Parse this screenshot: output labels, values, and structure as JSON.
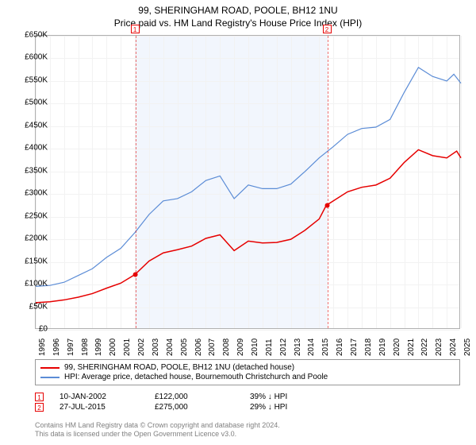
{
  "title": {
    "line1": "99, SHERINGHAM ROAD, POOLE, BH12 1NU",
    "line2": "Price paid vs. HM Land Registry's House Price Index (HPI)",
    "fontsize": 12,
    "color": "#000000"
  },
  "chart": {
    "type": "line",
    "background_color": "#ffffff",
    "grid_color": "#f2f2f2",
    "border_color": "#b0b0b0",
    "shade_color": "#eaf0fc",
    "x": {
      "min": 1995,
      "max": 2025,
      "tick_step": 1,
      "labels": [
        "1995",
        "1996",
        "1997",
        "1998",
        "1999",
        "2000",
        "2001",
        "2002",
        "2003",
        "2004",
        "2005",
        "2006",
        "2007",
        "2008",
        "2009",
        "2010",
        "2011",
        "2012",
        "2013",
        "2014",
        "2015",
        "2016",
        "2017",
        "2018",
        "2019",
        "2020",
        "2021",
        "2022",
        "2023",
        "2024",
        "2025"
      ],
      "label_fontsize": 10,
      "label_rotation": -90
    },
    "y": {
      "min": 0,
      "max": 650,
      "tick_step": 50,
      "labels": [
        "£0",
        "£50K",
        "£100K",
        "£150K",
        "£200K",
        "£250K",
        "£300K",
        "£350K",
        "£400K",
        "£450K",
        "£500K",
        "£550K",
        "£600K",
        "£650K"
      ],
      "label_fontsize": 10
    },
    "series": [
      {
        "name": "99, SHERINGHAM ROAD, POOLE, BH12 1NU (detached house)",
        "color": "#e60000",
        "line_width": 1.5,
        "points": [
          [
            1995,
            60
          ],
          [
            1996,
            62
          ],
          [
            1997,
            66
          ],
          [
            1998,
            72
          ],
          [
            1999,
            80
          ],
          [
            2000,
            92
          ],
          [
            2001,
            103
          ],
          [
            2002,
            122
          ],
          [
            2003,
            152
          ],
          [
            2004,
            170
          ],
          [
            2005,
            177
          ],
          [
            2006,
            185
          ],
          [
            2007,
            202
          ],
          [
            2008,
            210
          ],
          [
            2009,
            175
          ],
          [
            2010,
            196
          ],
          [
            2011,
            192
          ],
          [
            2012,
            193
          ],
          [
            2013,
            200
          ],
          [
            2014,
            220
          ],
          [
            2015,
            245
          ],
          [
            2015.5,
            275
          ],
          [
            2016,
            285
          ],
          [
            2017,
            305
          ],
          [
            2018,
            315
          ],
          [
            2019,
            320
          ],
          [
            2020,
            335
          ],
          [
            2021,
            370
          ],
          [
            2022,
            398
          ],
          [
            2023,
            385
          ],
          [
            2024,
            380
          ],
          [
            2024.7,
            395
          ],
          [
            2025,
            380
          ]
        ]
      },
      {
        "name": "HPI: Average price, detached house, Bournemouth Christchurch and Poole",
        "color": "#5b8cd6",
        "line_width": 1.2,
        "points": [
          [
            1995,
            96
          ],
          [
            1996,
            98
          ],
          [
            1997,
            105
          ],
          [
            1998,
            120
          ],
          [
            1999,
            135
          ],
          [
            2000,
            160
          ],
          [
            2001,
            180
          ],
          [
            2002,
            215
          ],
          [
            2003,
            255
          ],
          [
            2004,
            285
          ],
          [
            2005,
            290
          ],
          [
            2006,
            305
          ],
          [
            2007,
            330
          ],
          [
            2008,
            340
          ],
          [
            2009,
            290
          ],
          [
            2010,
            320
          ],
          [
            2011,
            312
          ],
          [
            2012,
            312
          ],
          [
            2013,
            322
          ],
          [
            2014,
            350
          ],
          [
            2015,
            380
          ],
          [
            2016,
            405
          ],
          [
            2017,
            432
          ],
          [
            2018,
            445
          ],
          [
            2019,
            448
          ],
          [
            2020,
            465
          ],
          [
            2021,
            525
          ],
          [
            2022,
            580
          ],
          [
            2023,
            560
          ],
          [
            2024,
            550
          ],
          [
            2024.5,
            565
          ],
          [
            2025,
            545
          ]
        ]
      }
    ],
    "sale_markers": [
      {
        "n": "1",
        "x": 2002.03,
        "y": 122
      },
      {
        "n": "2",
        "x": 2015.57,
        "y": 275
      }
    ],
    "sale_dots_color": "#e60000",
    "sale_dot_radius": 3
  },
  "legend": {
    "fontsize": 10,
    "items": [
      {
        "color": "#e60000",
        "label": "99, SHERINGHAM ROAD, POOLE, BH12 1NU (detached house)"
      },
      {
        "color": "#5b8cd6",
        "label": "HPI: Average price, detached house, Bournemouth Christchurch and Poole"
      }
    ]
  },
  "sales": [
    {
      "n": "1",
      "date": "10-JAN-2002",
      "price": "£122,000",
      "delta": "39% ↓ HPI"
    },
    {
      "n": "2",
      "date": "27-JUL-2015",
      "price": "£275,000",
      "delta": "29% ↓ HPI"
    }
  ],
  "footer": {
    "line1": "Contains HM Land Registry data © Crown copyright and database right 2024.",
    "line2": "This data is licensed under the Open Government Licence v3.0.",
    "color": "#808080",
    "fontsize": 9
  }
}
